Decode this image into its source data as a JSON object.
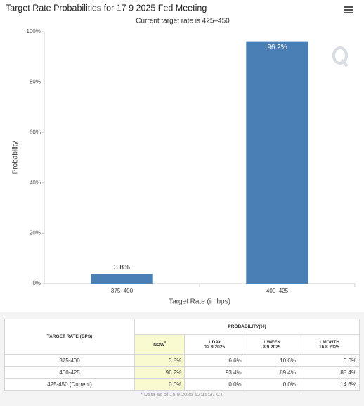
{
  "chart_data": {
    "type": "bar",
    "title": "Target Rate Probabilities for 17 9 2025 Fed Meeting",
    "subtitle": "Current target rate is 425–450",
    "x_label": "Target Rate (in bps)",
    "y_label": "Probability",
    "categories": [
      "375–400",
      "400–425"
    ],
    "values": [
      3.8,
      96.2
    ],
    "value_labels": [
      "3.8%",
      "96.2%"
    ],
    "color": "#4a7fb5",
    "ylim": [
      0,
      100
    ],
    "yticks": [
      {
        "value": 0,
        "label": "0%"
      },
      {
        "value": 20,
        "label": "20%"
      },
      {
        "value": 40,
        "label": "40%"
      },
      {
        "value": 60,
        "label": "60%"
      },
      {
        "value": 80,
        "label": "80%"
      },
      {
        "value": 100,
        "label": "100%"
      }
    ],
    "grid": false
  },
  "table": {
    "rate_header": "TARGET RATE (BPS)",
    "probability_header": "PROBABILITY(%)",
    "columns": [
      {
        "label": "NOW",
        "note": "*"
      },
      {
        "label": "1 DAY",
        "date": "12 9 2025"
      },
      {
        "label": "1 WEEK",
        "date": "8 9 2025"
      },
      {
        "label": "1 MONTH",
        "date": "16 8 2025"
      }
    ],
    "rows": [
      [
        "375-400",
        "3.8%",
        "6.6%",
        "10.6%",
        "0.0%"
      ],
      [
        "400-425",
        "96.2%",
        "93.4%",
        "89.4%",
        "85.4%"
      ],
      [
        "425-450 (Current)",
        "0.0%",
        "0.0%",
        "0.0%",
        "14.6%"
      ]
    ],
    "footnote": "* Data as of 15 9 2025 12:15:37 CT"
  }
}
